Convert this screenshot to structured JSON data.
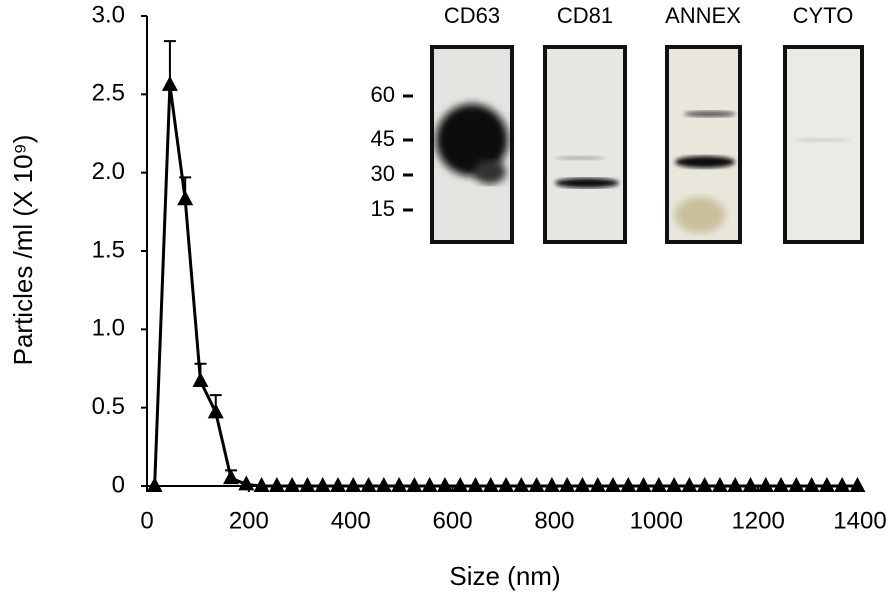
{
  "chart_data": {
    "type": "line",
    "x_label": "Size (nm)",
    "y_label": "Particles /ml (X 10⁹)",
    "x": [
      15,
      45,
      75,
      105,
      135,
      165,
      195,
      225,
      255,
      285,
      315,
      345,
      375,
      405,
      435,
      465,
      495,
      525,
      555,
      585,
      615,
      645,
      675,
      705,
      735,
      765,
      795,
      825,
      855,
      885,
      915,
      945,
      975,
      1005,
      1035,
      1065,
      1095,
      1125,
      1155,
      1185,
      1215,
      1245,
      1275,
      1305,
      1335,
      1365,
      1395
    ],
    "values": [
      0,
      2.56,
      1.83,
      0.67,
      0.47,
      0.05,
      0.01,
      0,
      0,
      0,
      0,
      0,
      0,
      0,
      0,
      0,
      0,
      0,
      0,
      0,
      0,
      0,
      0,
      0,
      0,
      0,
      0,
      0,
      0,
      0,
      0,
      0,
      0,
      0,
      0,
      0,
      0,
      0,
      0,
      0,
      0,
      0,
      0,
      0,
      0,
      0,
      0
    ],
    "errors": [
      null,
      0.28,
      0.14,
      0.11,
      0.11,
      0.05,
      null,
      null,
      null,
      null,
      null,
      null,
      null,
      null,
      null,
      null,
      null,
      null,
      null,
      null,
      null,
      null,
      null,
      null,
      null,
      null,
      null,
      null,
      null,
      null,
      null,
      null,
      null,
      null,
      null,
      null,
      null,
      null,
      null,
      null,
      null,
      null,
      null,
      null,
      null,
      null,
      null
    ],
    "color": "#000000",
    "xlim": [
      0,
      1400
    ],
    "xticks": [
      0,
      200,
      400,
      600,
      800,
      1000,
      1200,
      1400
    ],
    "ylim": [
      0,
      3
    ],
    "yticks": [
      0,
      0.5,
      {
        "value": 1,
        "label": "1.0"
      },
      1.5,
      {
        "value": 2,
        "label": "2.0"
      },
      2.5,
      {
        "value": 3,
        "label": "3.0"
      }
    ],
    "inset": {
      "lanes": [
        "CD63",
        "CD81",
        "ANNEX",
        "CYTO"
      ],
      "markers": [
        "60",
        "45",
        "30",
        "15"
      ]
    }
  }
}
